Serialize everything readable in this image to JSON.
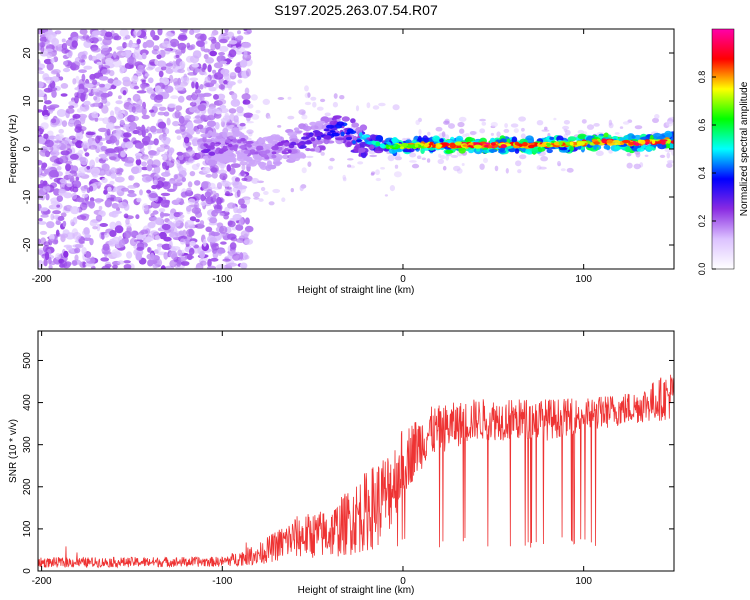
{
  "chart_data": [
    {
      "type": "heatmap",
      "title": "S197.2025.263.07.54.R07",
      "xlabel": "Height of straight line (km)",
      "ylabel": "Frequency (Hz)",
      "xlim": [
        -202,
        150
      ],
      "ylim": [
        -25,
        25
      ],
      "x_ticks": [
        -200,
        -100,
        0,
        100
      ],
      "y_ticks": [
        -20,
        -10,
        0,
        10,
        20
      ],
      "colorbar": {
        "label": "Normalized spectral amplitude",
        "range": [
          0,
          1
        ],
        "ticks": [
          0.0,
          0.2,
          0.4,
          0.6,
          0.8
        ],
        "colors": [
          "#ffffff",
          "#dcc2ff",
          "#8a2be2",
          "#0000ff",
          "#00ffff",
          "#00ff00",
          "#ffff00",
          "#ff0000",
          "#ff00aa"
        ]
      },
      "noise_region_x": [
        -200,
        -85
      ],
      "ridge": [
        {
          "x": -110,
          "f": 0.0,
          "a": 0.25
        },
        {
          "x": -90,
          "f": 1.0,
          "a": 0.2
        },
        {
          "x": -75,
          "f": -1.0,
          "a": 0.2
        },
        {
          "x": -60,
          "f": 1.0,
          "a": 0.25
        },
        {
          "x": -45,
          "f": 3.0,
          "a": 0.3
        },
        {
          "x": -35,
          "f": 4.5,
          "a": 0.35
        },
        {
          "x": -25,
          "f": 2.0,
          "a": 0.4
        },
        {
          "x": -15,
          "f": 1.0,
          "a": 0.5
        },
        {
          "x": -5,
          "f": 0.5,
          "a": 0.65
        },
        {
          "x": 10,
          "f": 0.8,
          "a": 0.75
        },
        {
          "x": 30,
          "f": 0.8,
          "a": 0.85
        },
        {
          "x": 50,
          "f": 0.8,
          "a": 0.85
        },
        {
          "x": 70,
          "f": 0.8,
          "a": 0.8
        },
        {
          "x": 90,
          "f": 1.0,
          "a": 0.75
        },
        {
          "x": 110,
          "f": 1.5,
          "a": 0.8
        },
        {
          "x": 130,
          "f": 1.2,
          "a": 0.85
        },
        {
          "x": 150,
          "f": 1.8,
          "a": 0.8
        }
      ]
    },
    {
      "type": "line",
      "xlabel": "Height of straight line (km)",
      "ylabel": "SNR (10 * v/v)",
      "xlim": [
        -202,
        150
      ],
      "ylim": [
        0,
        570
      ],
      "x_ticks": [
        -200,
        -100,
        0,
        100
      ],
      "y_ticks": [
        0,
        100,
        200,
        300,
        400,
        500
      ],
      "color": "#ee3333",
      "envelope": [
        {
          "x": -200,
          "y": 20,
          "spread": 12
        },
        {
          "x": -100,
          "y": 22,
          "spread": 12
        },
        {
          "x": -80,
          "y": 40,
          "spread": 25
        },
        {
          "x": -60,
          "y": 80,
          "spread": 50
        },
        {
          "x": -40,
          "y": 90,
          "spread": 60
        },
        {
          "x": -25,
          "y": 130,
          "spread": 90
        },
        {
          "x": -10,
          "y": 170,
          "spread": 110
        },
        {
          "x": 0,
          "y": 260,
          "spread": 80
        },
        {
          "x": 15,
          "y": 330,
          "spread": 60
        },
        {
          "x": 40,
          "y": 360,
          "spread": 50
        },
        {
          "x": 80,
          "y": 360,
          "spread": 50
        },
        {
          "x": 100,
          "y": 370,
          "spread": 40
        },
        {
          "x": 130,
          "y": 390,
          "spread": 40
        },
        {
          "x": 150,
          "y": 420,
          "spread": 60
        }
      ],
      "dropouts_x": [
        -10,
        108
      ],
      "dropout_floor": 55
    }
  ]
}
